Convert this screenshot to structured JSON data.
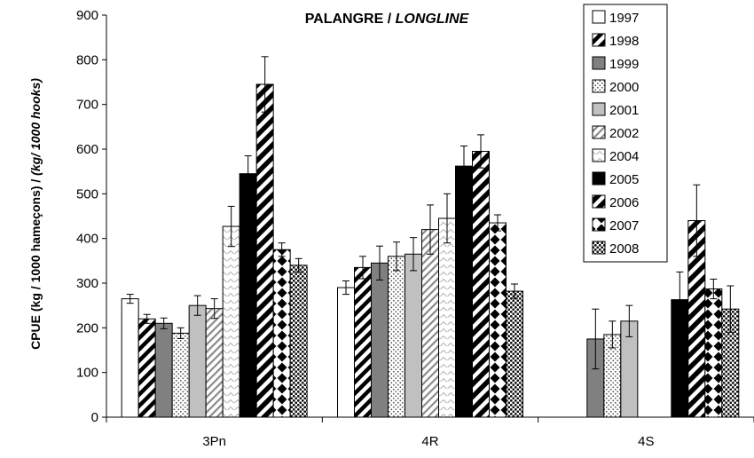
{
  "chart_data": {
    "type": "bar",
    "title_part1": "PALANGRE / ",
    "title_part2": "LONGLINE",
    "ylabel_part1": "CPUE (kg / 1000 hameçons) / ",
    "ylabel_part2": "(kg/ 1000 hooks)",
    "xlabel": "",
    "ylim": [
      0,
      900
    ],
    "yticks": [
      0,
      100,
      200,
      300,
      400,
      500,
      600,
      700,
      800,
      900
    ],
    "categories": [
      "3Pn",
      "4R",
      "4S"
    ],
    "grid": false,
    "legend_position": "top-right",
    "series": [
      {
        "name": "1997",
        "pattern": "white",
        "values": [
          265,
          290,
          null
        ],
        "errors": [
          10,
          15,
          null
        ]
      },
      {
        "name": "1998",
        "pattern": "diag-black",
        "values": [
          220,
          335,
          null
        ],
        "errors": [
          10,
          25,
          null
        ]
      },
      {
        "name": "1999",
        "pattern": "darkgray",
        "values": [
          210,
          345,
          175
        ],
        "errors": [
          12,
          38,
          67
        ]
      },
      {
        "name": "2000",
        "pattern": "dots-light",
        "values": [
          188,
          360,
          185
        ],
        "errors": [
          12,
          32,
          30
        ]
      },
      {
        "name": "2001",
        "pattern": "lightgray",
        "values": [
          250,
          365,
          215
        ],
        "errors": [
          22,
          37,
          35
        ]
      },
      {
        "name": "2002",
        "pattern": "diag-gray",
        "values": [
          243,
          420,
          null
        ],
        "errors": [
          22,
          55,
          null
        ]
      },
      {
        "name": "2004",
        "pattern": "chevron",
        "values": [
          427,
          445,
          null
        ],
        "errors": [
          45,
          55,
          null
        ]
      },
      {
        "name": "2005",
        "pattern": "black",
        "values": [
          545,
          562,
          263
        ],
        "errors": [
          40,
          45,
          62
        ]
      },
      {
        "name": "2006",
        "pattern": "diag-bold",
        "values": [
          745,
          595,
          440
        ],
        "errors": [
          62,
          37,
          80
        ]
      },
      {
        "name": "2007",
        "pattern": "diamonds",
        "values": [
          375,
          435,
          287
        ],
        "errors": [
          15,
          18,
          22
        ]
      },
      {
        "name": "2008",
        "pattern": "dots-dark",
        "values": [
          340,
          282,
          242
        ],
        "errors": [
          15,
          16,
          52
        ]
      }
    ]
  }
}
